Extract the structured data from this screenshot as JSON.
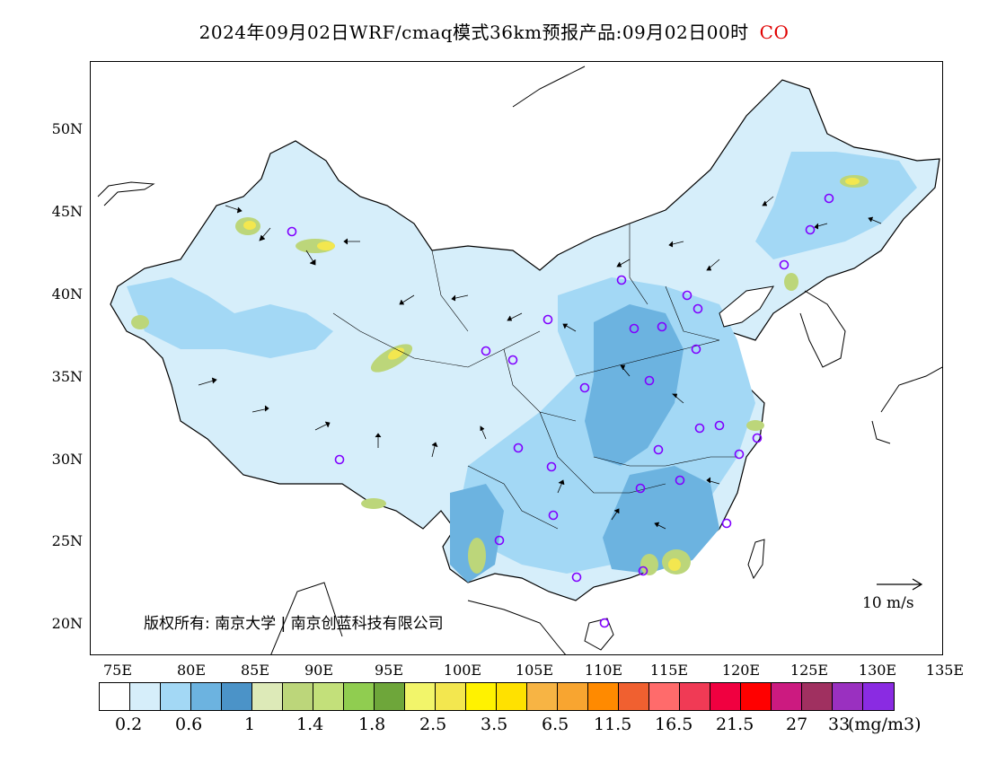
{
  "title": {
    "main": "2024年09月02日WRF/cmaq模式36km预报产品:09月02日00时",
    "species": "CO"
  },
  "copyright": "版权所有: 南京大学 | 南京创蓝科技有限公司",
  "wind_reference": "10 m/s",
  "lat_labels": [
    "50N",
    "45N",
    "40N",
    "35N",
    "30N",
    "25N",
    "20N"
  ],
  "lon_labels": [
    "75E",
    "80E",
    "85E",
    "90E",
    "95E",
    "100E",
    "105E",
    "110E",
    "115E",
    "120E",
    "125E",
    "130E",
    "135E"
  ],
  "colorbar": {
    "colors": [
      "#ffffff",
      "#d6eefa",
      "#a3d8f5",
      "#6cb3e0",
      "#4b93c8",
      "#ddeab8",
      "#bcd67a",
      "#c3e07a",
      "#90cd50",
      "#6ea63a",
      "#f2f56a",
      "#f3e74f",
      "#fff200",
      "#ffe100",
      "#f7b444",
      "#f8a530",
      "#ff8a00",
      "#f06030",
      "#ff6b6b",
      "#f03a55",
      "#f00040",
      "#ff0000",
      "#cc1a80",
      "#a03060",
      "#9a30c0",
      "#8a2be2"
    ],
    "labels": [
      "0.2",
      "0.6",
      "1",
      "1.4",
      "1.8",
      "2.5",
      "3.5",
      "6.5",
      "11.5",
      "16.5",
      "21.5",
      "27",
      "33"
    ],
    "unit": "(mg/m3)"
  }
}
